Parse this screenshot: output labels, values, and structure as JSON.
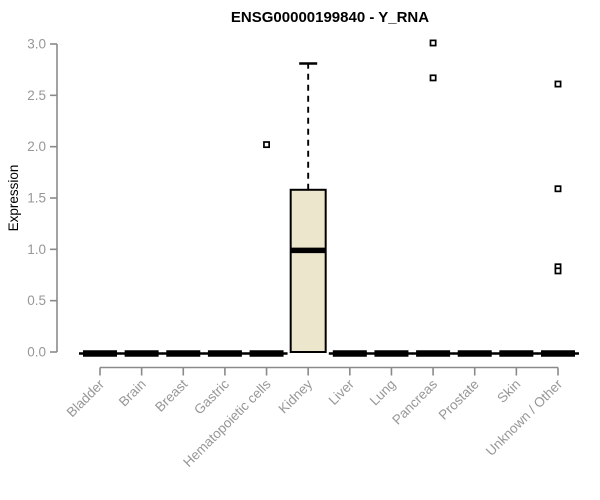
{
  "chart_data": {
    "type": "boxplot",
    "title": "ENSG00000199840 - Y_RNA",
    "ylabel": "Expression",
    "xlabel": "",
    "ylim": [
      0,
      3
    ],
    "yticks": [
      0.0,
      0.5,
      1.0,
      1.5,
      2.0,
      2.5,
      3.0
    ],
    "ytick_labels": [
      "0.0",
      "0.5",
      "1.0",
      "1.5",
      "2.0",
      "2.5",
      "3.0"
    ],
    "grid": false,
    "legend": null,
    "categories": [
      "Bladder",
      "Brain",
      "Breast",
      "Gastric",
      "Hematopoietic cells",
      "Kidney",
      "Liver",
      "Lung",
      "Pancreas",
      "Prostate",
      "Skin",
      "Unknown / Other"
    ],
    "groups": [
      {
        "label": "Bladder",
        "q1": 0,
        "median": 0,
        "q3": 0,
        "whisker_low": 0,
        "whisker_high": 0,
        "outliers": []
      },
      {
        "label": "Brain",
        "q1": 0,
        "median": 0,
        "q3": 0,
        "whisker_low": 0,
        "whisker_high": 0,
        "outliers": []
      },
      {
        "label": "Breast",
        "q1": 0,
        "median": 0,
        "q3": 0,
        "whisker_low": 0,
        "whisker_high": 0,
        "outliers": []
      },
      {
        "label": "Gastric",
        "q1": 0,
        "median": 0,
        "q3": 0,
        "whisker_low": 0,
        "whisker_high": 0,
        "outliers": []
      },
      {
        "label": "Hematopoietic cells",
        "q1": 0,
        "median": 0,
        "q3": 0,
        "whisker_low": 0,
        "whisker_high": 0,
        "outliers": [
          2.02
        ]
      },
      {
        "label": "Kidney",
        "q1": 0,
        "median": 0.99,
        "q3": 1.58,
        "whisker_low": 0,
        "whisker_high": 2.81,
        "outliers": []
      },
      {
        "label": "Liver",
        "q1": 0,
        "median": 0,
        "q3": 0,
        "whisker_low": 0,
        "whisker_high": 0,
        "outliers": []
      },
      {
        "label": "Lung",
        "q1": 0,
        "median": 0,
        "q3": 0,
        "whisker_low": 0,
        "whisker_high": 0,
        "outliers": []
      },
      {
        "label": "Pancreas",
        "q1": 0,
        "median": 0,
        "q3": 0,
        "whisker_low": 0,
        "whisker_high": 0,
        "outliers": [
          3.01,
          2.67
        ]
      },
      {
        "label": "Prostate",
        "q1": 0,
        "median": 0,
        "q3": 0,
        "whisker_low": 0,
        "whisker_high": 0,
        "outliers": []
      },
      {
        "label": "Skin",
        "q1": 0,
        "median": 0,
        "q3": 0,
        "whisker_low": 0,
        "whisker_high": 0,
        "outliers": []
      },
      {
        "label": "Unknown / Other",
        "q1": 0,
        "median": 0,
        "q3": 0,
        "whisker_low": 0,
        "whisker_high": 0,
        "outliers": [
          2.61,
          1.59,
          0.83,
          0.79
        ]
      }
    ],
    "colors": {
      "box_fill": "#ECE6CC",
      "box_stroke": "#000000",
      "median": "#000000",
      "whisker": "#000000",
      "outlier_stroke": "#000000",
      "outlier_fill": "#ffffff",
      "axis": "#8A8A8A",
      "tick_label": "#979797",
      "title": "#000000"
    }
  }
}
